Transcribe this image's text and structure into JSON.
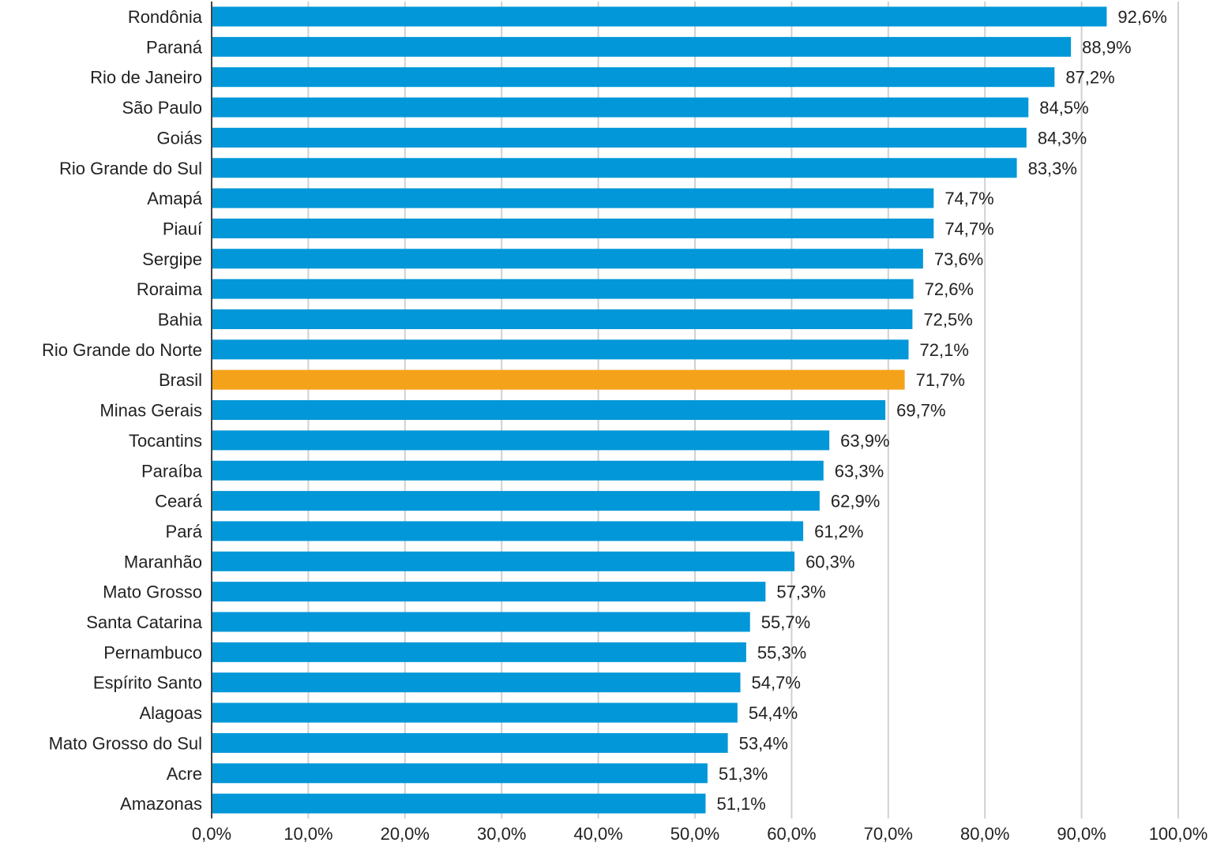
{
  "colors": {
    "bar": "#0297d8",
    "highlight": "#f5a21b",
    "grid": "#d0d0d0",
    "text": "#222222"
  },
  "chart_data": {
    "type": "bar",
    "orientation": "horizontal",
    "title": "",
    "xlabel": "",
    "ylabel": "",
    "xlim": [
      0,
      100
    ],
    "grid": true,
    "highlight_category": "Brasil",
    "categories": [
      "Rondônia",
      "Paraná",
      "Rio de Janeiro",
      "São Paulo",
      "Goiás",
      "Rio Grande do Sul",
      "Amapá",
      "Piauí",
      "Sergipe",
      "Roraima",
      "Bahia",
      "Rio Grande do Norte",
      "Brasil",
      "Minas Gerais",
      "Tocantins",
      "Paraíba",
      "Ceará",
      "Pará",
      "Maranhão",
      "Mato Grosso",
      "Santa Catarina",
      "Pernambuco",
      "Espírito Santo",
      "Alagoas",
      "Mato Grosso do Sul",
      "Acre",
      "Amazonas"
    ],
    "values": [
      92.6,
      88.9,
      87.2,
      84.5,
      84.3,
      83.3,
      74.7,
      74.7,
      73.6,
      72.6,
      72.5,
      72.1,
      71.7,
      69.7,
      63.9,
      63.3,
      62.9,
      61.2,
      60.3,
      57.3,
      55.7,
      55.3,
      54.7,
      54.4,
      53.4,
      51.3,
      51.1
    ],
    "value_labels": [
      "92,6%",
      "88,9%",
      "87,2%",
      "84,5%",
      "84,3%",
      "83,3%",
      "74,7%",
      "74,7%",
      "73,6%",
      "72,6%",
      "72,5%",
      "72,1%",
      "71,7%",
      "69,7%",
      "63,9%",
      "63,3%",
      "62,9%",
      "61,2%",
      "60,3%",
      "57,3%",
      "55,7%",
      "55,3%",
      "54,7%",
      "54,4%",
      "53,4%",
      "51,3%",
      "51,1%"
    ],
    "x_ticks": [
      0,
      10,
      20,
      30,
      40,
      50,
      60,
      70,
      80,
      90,
      100
    ],
    "x_tick_labels": [
      "0,0%",
      "10,0%",
      "20,0%",
      "30,0%",
      "40,0%",
      "50,0%",
      "60,0%",
      "70,0%",
      "80,0%",
      "90,0%",
      "100,0%"
    ]
  }
}
